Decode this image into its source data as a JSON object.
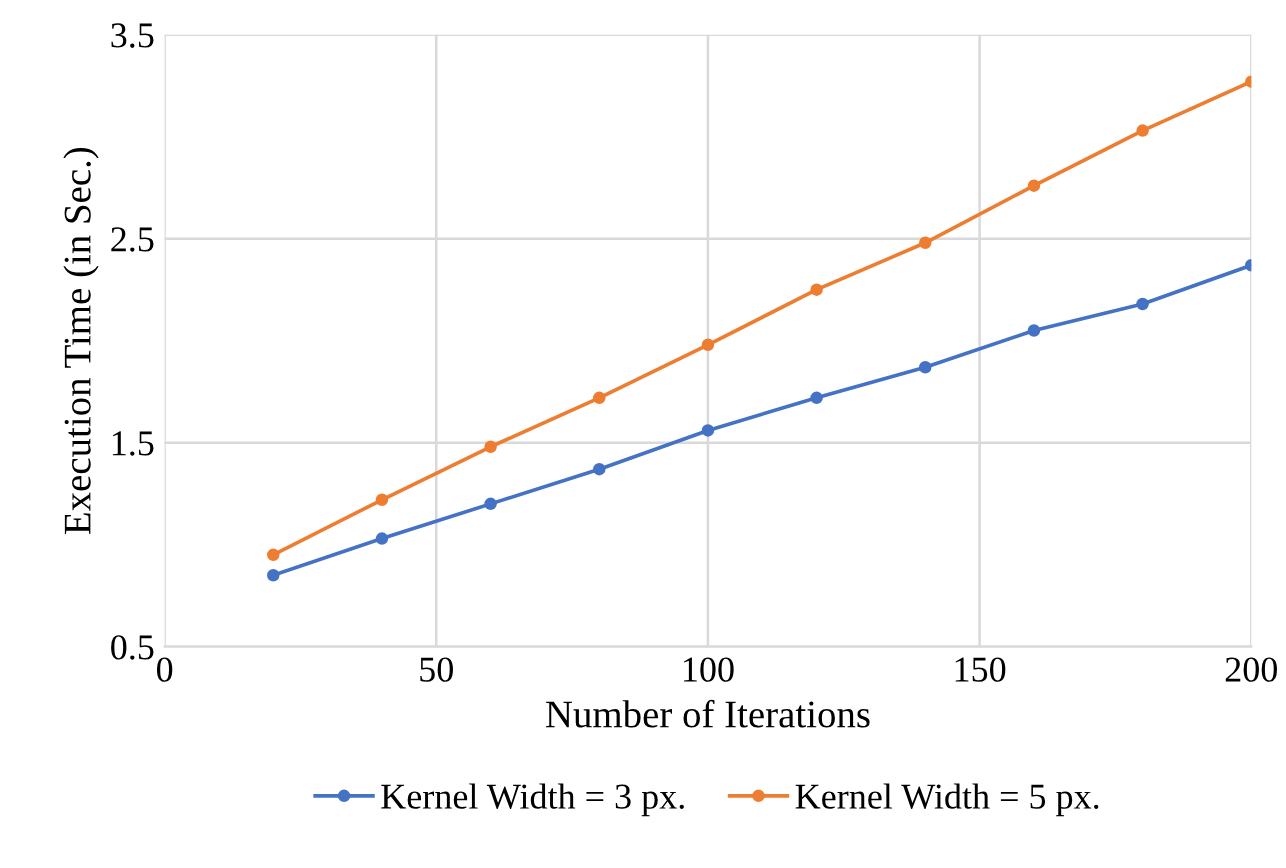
{
  "chart_data": {
    "type": "line",
    "xlabel": "Number of Iterations",
    "ylabel": "Execution Time (in Sec.)",
    "x": [
      20,
      40,
      60,
      80,
      100,
      120,
      140,
      160,
      180,
      200
    ],
    "series": [
      {
        "name": "Kernel Width = 3 px.",
        "color": "#4472c4",
        "values": [
          0.85,
          1.03,
          1.2,
          1.37,
          1.56,
          1.72,
          1.87,
          2.05,
          2.18,
          2.37
        ]
      },
      {
        "name": "Kernel Width = 5 px.",
        "color": "#ed7d31",
        "values": [
          0.95,
          1.22,
          1.48,
          1.72,
          1.98,
          2.25,
          2.48,
          2.76,
          3.03,
          3.27
        ]
      }
    ],
    "xlim": [
      0,
      200
    ],
    "xticks": [
      0,
      50,
      100,
      150,
      200
    ],
    "ylim": [
      0.5,
      3.5
    ],
    "yticks": [
      0.5,
      1.5,
      2.5,
      3.5
    ],
    "grid": true,
    "legend": "bottom",
    "marker": "circle",
    "line_style": "solid"
  }
}
